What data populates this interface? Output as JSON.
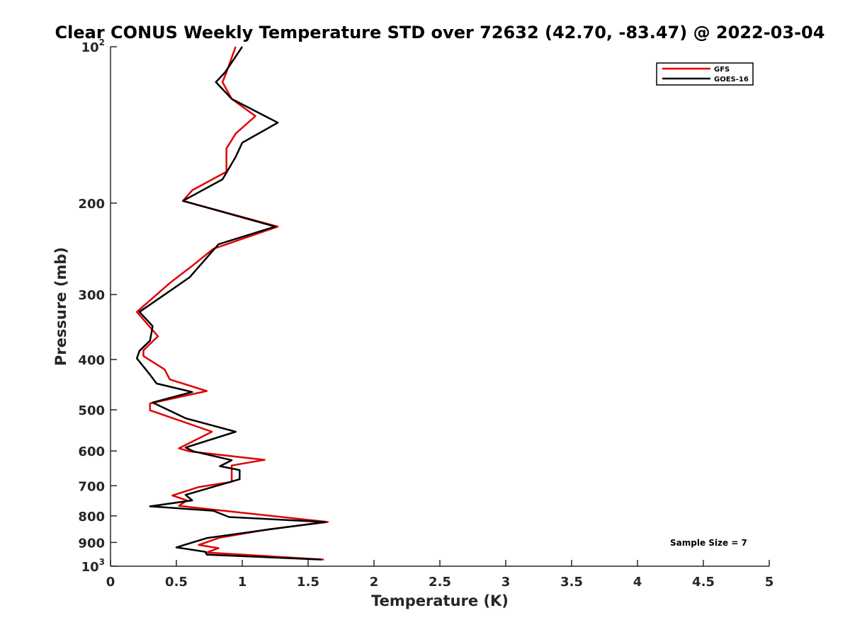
{
  "chart_data": {
    "type": "line",
    "title": "Clear CONUS Weekly Temperature STD over 72632 (42.70, -83.47) @ 2022-03-04",
    "xlabel": "Temperature (K)",
    "ylabel": "Pressure (mb)",
    "xlim": [
      0,
      5
    ],
    "ylim": [
      100,
      1000
    ],
    "y_scale": "log",
    "y_reversed": true,
    "x_ticks": [
      0,
      0.5,
      1,
      1.5,
      2,
      2.5,
      3,
      3.5,
      4,
      4.5,
      5
    ],
    "x_tick_labels": [
      "0",
      "0.5",
      "1",
      "1.5",
      "2",
      "2.5",
      "3",
      "3.5",
      "4",
      "4.5",
      "5"
    ],
    "y_ticks": [
      100,
      200,
      300,
      400,
      500,
      600,
      700,
      800,
      900,
      1000
    ],
    "y_tick_labels": [
      {
        "base": "10",
        "exp": "2"
      },
      {
        "base": "200",
        "exp": ""
      },
      {
        "base": "300",
        "exp": ""
      },
      {
        "base": "400",
        "exp": ""
      },
      {
        "base": "500",
        "exp": ""
      },
      {
        "base": "600",
        "exp": ""
      },
      {
        "base": "700",
        "exp": ""
      },
      {
        "base": "800",
        "exp": ""
      },
      {
        "base": "900",
        "exp": ""
      },
      {
        "base": "10",
        "exp": "3"
      }
    ],
    "grid": false,
    "legend_position": "top-right",
    "annotation": "Sample Size = 7",
    "series": [
      {
        "name": "GFS",
        "color": "#e00000",
        "points": [
          [
            0.95,
            100
          ],
          [
            0.88,
            112
          ],
          [
            0.85,
            117
          ],
          [
            0.92,
            126
          ],
          [
            1.1,
            136
          ],
          [
            0.95,
            147
          ],
          [
            0.88,
            157
          ],
          [
            0.88,
            174
          ],
          [
            0.62,
            189
          ],
          [
            0.55,
            198
          ],
          [
            1.27,
            222
          ],
          [
            0.78,
            245
          ],
          [
            0.63,
            263
          ],
          [
            0.45,
            285
          ],
          [
            0.2,
            324
          ],
          [
            0.36,
            361
          ],
          [
            0.25,
            384
          ],
          [
            0.25,
            394
          ],
          [
            0.41,
            418
          ],
          [
            0.45,
            437
          ],
          [
            0.73,
            460
          ],
          [
            0.3,
            486
          ],
          [
            0.3,
            501
          ],
          [
            0.77,
            551
          ],
          [
            0.52,
            593
          ],
          [
            0.6,
            601
          ],
          [
            1.17,
            624
          ],
          [
            0.92,
            640
          ],
          [
            0.92,
            688
          ],
          [
            0.67,
            704
          ],
          [
            0.47,
            731
          ],
          [
            0.58,
            747
          ],
          [
            0.52,
            765
          ],
          [
            0.76,
            777
          ],
          [
            1.65,
            822
          ],
          [
            1.2,
            849
          ],
          [
            0.83,
            881
          ],
          [
            0.67,
            910
          ],
          [
            0.82,
            923
          ],
          [
            0.73,
            941
          ],
          [
            1.62,
            971
          ]
        ]
      },
      {
        "name": "GOES-16",
        "color": "#000000",
        "points": [
          [
            1.0,
            100
          ],
          [
            0.87,
            112
          ],
          [
            0.8,
            117
          ],
          [
            0.92,
            126
          ],
          [
            1.27,
            140
          ],
          [
            1.0,
            153
          ],
          [
            0.95,
            163
          ],
          [
            0.85,
            180
          ],
          [
            0.55,
            198
          ],
          [
            1.25,
            222
          ],
          [
            0.82,
            240
          ],
          [
            0.6,
            278
          ],
          [
            0.22,
            324
          ],
          [
            0.32,
            345
          ],
          [
            0.3,
            368
          ],
          [
            0.22,
            385
          ],
          [
            0.2,
            398
          ],
          [
            0.3,
            428
          ],
          [
            0.35,
            445
          ],
          [
            0.62,
            462
          ],
          [
            0.32,
            484
          ],
          [
            0.57,
            519
          ],
          [
            0.95,
            551
          ],
          [
            0.57,
            591
          ],
          [
            0.63,
            601
          ],
          [
            0.92,
            625
          ],
          [
            0.83,
            642
          ],
          [
            0.98,
            653
          ],
          [
            0.98,
            680
          ],
          [
            0.57,
            729
          ],
          [
            0.62,
            747
          ],
          [
            0.3,
            767
          ],
          [
            0.78,
            782
          ],
          [
            0.9,
            804
          ],
          [
            1.63,
            822
          ],
          [
            1.18,
            851
          ],
          [
            0.73,
            883
          ],
          [
            0.5,
            920
          ],
          [
            0.72,
            938
          ],
          [
            0.73,
            950
          ],
          [
            1.6,
            971
          ]
        ]
      }
    ]
  }
}
